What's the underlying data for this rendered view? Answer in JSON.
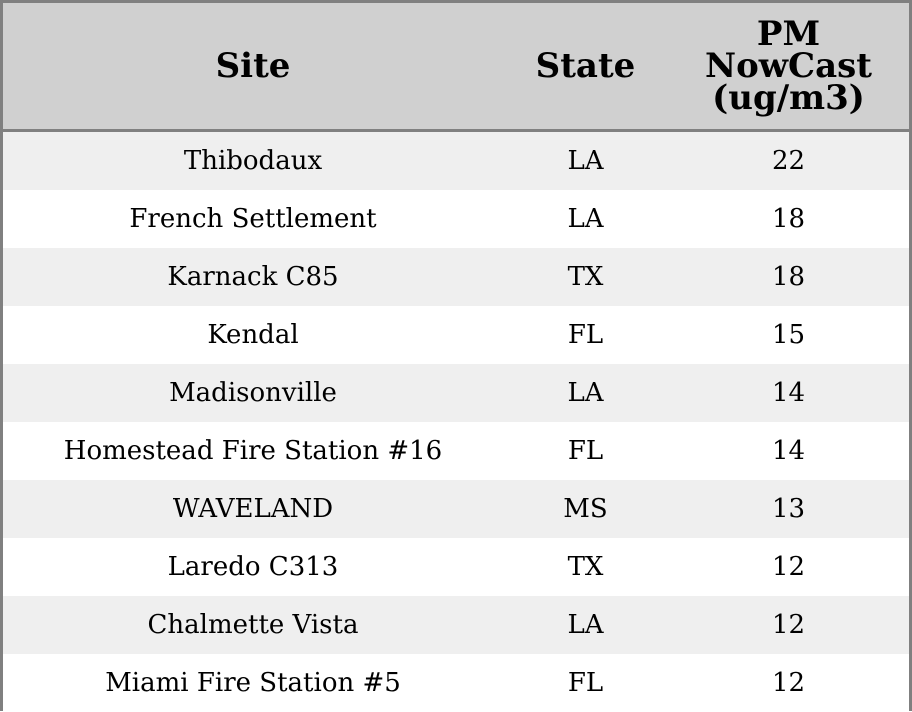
{
  "chart_data": {
    "type": "table",
    "columns": [
      "Site",
      "State",
      "PM NowCast (ug/m3)"
    ],
    "header_lines": {
      "site": [
        "Site"
      ],
      "state": [
        "State"
      ],
      "pm": [
        "PM",
        "NowCast",
        "(ug/m3)"
      ]
    },
    "rows": [
      {
        "site": "Thibodaux",
        "state": "LA",
        "pm": 22
      },
      {
        "site": "French Settlement",
        "state": "LA",
        "pm": 18
      },
      {
        "site": "Karnack C85",
        "state": "TX",
        "pm": 18
      },
      {
        "site": "Kendal",
        "state": "FL",
        "pm": 15
      },
      {
        "site": "Madisonville",
        "state": "LA",
        "pm": 14
      },
      {
        "site": "Homestead Fire Station #16",
        "state": "FL",
        "pm": 14
      },
      {
        "site": "WAVELAND",
        "state": "MS",
        "pm": 13
      },
      {
        "site": "Laredo C313",
        "state": "TX",
        "pm": 12
      },
      {
        "site": "Chalmette Vista",
        "state": "LA",
        "pm": 12
      },
      {
        "site": "Miami Fire Station #5",
        "state": "FL",
        "pm": 12
      }
    ]
  },
  "colors": {
    "header_bg": "#d0d0d0",
    "row_odd": "#efefef",
    "row_even": "#ffffff",
    "border": "#808080"
  }
}
